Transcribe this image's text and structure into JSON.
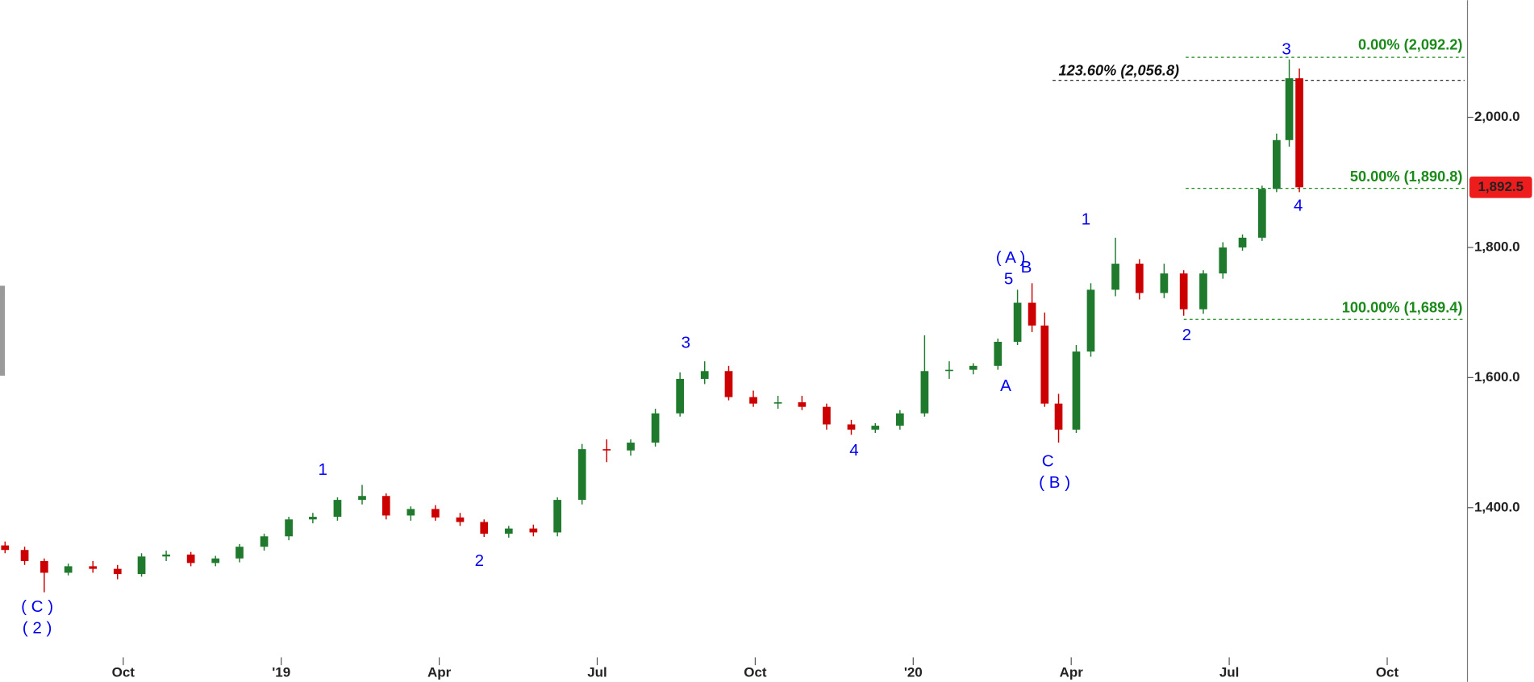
{
  "chart_data": {
    "type": "candlestick",
    "up_color": "#1f7a2e",
    "down_color": "#cc0000",
    "x": [
      2018.563,
      2018.594,
      2018.625,
      2018.663,
      2018.702,
      2018.741,
      2018.779,
      2018.818,
      2018.857,
      2018.896,
      2018.934,
      2018.973,
      2019.012,
      2019.05,
      2019.089,
      2019.128,
      2019.166,
      2019.205,
      2019.244,
      2019.283,
      2019.321,
      2019.36,
      2019.399,
      2019.437,
      2019.476,
      2019.515,
      2019.553,
      2019.592,
      2019.631,
      2019.67,
      2019.708,
      2019.747,
      2019.786,
      2019.824,
      2019.863,
      2019.902,
      2019.94,
      2019.979,
      2020.018,
      2020.057,
      2020.095,
      2020.134,
      2020.165,
      2020.188,
      2020.208,
      2020.23,
      2020.258,
      2020.281,
      2020.32,
      2020.358,
      2020.397,
      2020.428,
      2020.459,
      2020.49,
      2020.521,
      2020.552,
      2020.575,
      2020.595,
      2020.611
    ],
    "open": [
      1342,
      1335,
      1318,
      1300,
      1310,
      1306,
      1298,
      1325,
      1328,
      1315,
      1322,
      1340,
      1356,
      1382,
      1386,
      1412,
      1418,
      1388,
      1398,
      1385,
      1378,
      1360,
      1368,
      1362,
      1412,
      1490,
      1488,
      1500,
      1545,
      1598,
      1610,
      1570,
      1560,
      1562,
      1555,
      1528,
      1520,
      1526,
      1545,
      1610,
      1612,
      1618,
      1655,
      1715,
      1680,
      1560,
      1520,
      1640,
      1735,
      1775,
      1730,
      1760,
      1705,
      1760,
      1800,
      1815,
      1890,
      1965,
      2060
    ],
    "high": [
      1348,
      1340,
      1322,
      1314,
      1318,
      1312,
      1330,
      1334,
      1332,
      1326,
      1344,
      1360,
      1386,
      1392,
      1416,
      1435,
      1422,
      1402,
      1404,
      1392,
      1382,
      1372,
      1374,
      1416,
      1498,
      1505,
      1505,
      1552,
      1608,
      1625,
      1618,
      1580,
      1572,
      1572,
      1560,
      1535,
      1530,
      1550,
      1665,
      1625,
      1622,
      1660,
      1735,
      1745,
      1700,
      1575,
      1650,
      1745,
      1815,
      1782,
      1775,
      1765,
      1765,
      1808,
      1820,
      1895,
      1975,
      2089,
      2075
    ],
    "low": [
      1330,
      1312,
      1270,
      1296,
      1300,
      1290,
      1294,
      1318,
      1310,
      1310,
      1316,
      1334,
      1350,
      1376,
      1380,
      1405,
      1382,
      1380,
      1380,
      1372,
      1355,
      1354,
      1356,
      1356,
      1405,
      1470,
      1480,
      1494,
      1540,
      1590,
      1565,
      1555,
      1552,
      1550,
      1520,
      1512,
      1515,
      1520,
      1540,
      1598,
      1605,
      1612,
      1650,
      1670,
      1555,
      1500,
      1515,
      1632,
      1725,
      1720,
      1722,
      1695,
      1698,
      1752,
      1795,
      1810,
      1885,
      1955,
      1885
    ],
    "close": [
      1335,
      1318,
      1300,
      1310,
      1306,
      1298,
      1325,
      1328,
      1315,
      1322,
      1340,
      1356,
      1382,
      1386,
      1412,
      1418,
      1388,
      1398,
      1385,
      1378,
      1360,
      1368,
      1362,
      1412,
      1490,
      1488,
      1500,
      1545,
      1598,
      1610,
      1570,
      1560,
      1562,
      1555,
      1528,
      1520,
      1526,
      1545,
      1610,
      1612,
      1618,
      1655,
      1715,
      1680,
      1560,
      1520,
      1640,
      1735,
      1775,
      1730,
      1760,
      1705,
      1760,
      1800,
      1815,
      1890,
      1965,
      2060,
      1892.5
    ],
    "xlim": [
      2018.555,
      2020.877
    ],
    "xticks": [
      {
        "value": 2018.75,
        "label": "Oct"
      },
      {
        "value": 2019,
        "label": "'19"
      },
      {
        "value": 2019.25,
        "label": "Apr"
      },
      {
        "value": 2019.5,
        "label": "Jul"
      },
      {
        "value": 2019.75,
        "label": "Oct"
      },
      {
        "value": 2020,
        "label": "'20"
      },
      {
        "value": 2020.25,
        "label": "Apr"
      },
      {
        "value": 2020.5,
        "label": "Jul"
      },
      {
        "value": 2020.75,
        "label": "Oct"
      }
    ],
    "ylim": [
      1176,
      2180
    ],
    "yticks": [
      {
        "value": 1400,
        "label": "1,400.0"
      },
      {
        "value": 1600,
        "label": "1,600.0"
      },
      {
        "value": 1800,
        "label": "1,800.0"
      },
      {
        "value": 2000,
        "label": "2,000.0"
      }
    ],
    "fib_levels": [
      {
        "label": "0.00% (2,092.2)",
        "value": 2092.2,
        "color": "#1a8a1a"
      },
      {
        "label": "123.60% (2,056.8)",
        "value": 2056.8,
        "color": "#111111"
      },
      {
        "label": "50.00% (1,890.8)",
        "value": 1890.8,
        "color": "#1a8a1a"
      },
      {
        "label": "100.00% (1,689.4)",
        "value": 1689.4,
        "color": "#1a8a1a"
      }
    ],
    "last_price": {
      "value": 1892.5,
      "label": "1,892.5",
      "color": "#ee1c1c"
    },
    "annotations": [
      "( C )",
      "( 2 )",
      "1",
      "2",
      "3",
      "4",
      "( A )",
      "5",
      "B",
      "A",
      "C",
      "( B )",
      "1",
      "2",
      "3",
      "4"
    ]
  }
}
